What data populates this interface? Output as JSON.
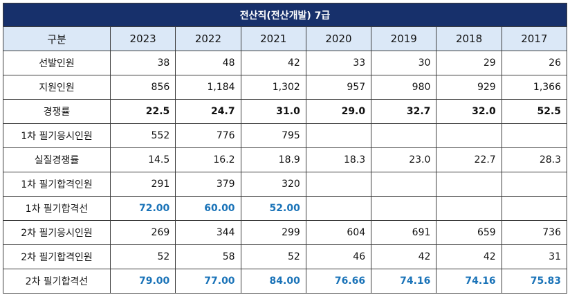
{
  "title": "전산직(전산개발) 7급",
  "header": [
    "구분",
    "2023",
    "2022",
    "2021",
    "2020",
    "2019",
    "2018",
    "2017"
  ],
  "rows": [
    {
      "label": "선발인원",
      "style": "normal",
      "values": [
        "38",
        "48",
        "42",
        "33",
        "30",
        "29",
        "26"
      ]
    },
    {
      "label": "지원인원",
      "style": "normal",
      "values": [
        "856",
        "1,184",
        "1,302",
        "957",
        "980",
        "929",
        "1,366"
      ]
    },
    {
      "label": "경쟁률",
      "style": "bold",
      "values": [
        "22.5",
        "24.7",
        "31.0",
        "29.0",
        "32.7",
        "32.0",
        "52.5"
      ]
    },
    {
      "label": "1차 필기응시인원",
      "style": "normal",
      "values": [
        "552",
        "776",
        "795",
        "",
        "",
        "",
        ""
      ]
    },
    {
      "label": "실질경쟁률",
      "style": "normal",
      "values": [
        "14.5",
        "16.2",
        "18.9",
        "18.3",
        "23.0",
        "22.7",
        "28.3"
      ]
    },
    {
      "label": "1차 필기합격인원",
      "style": "normal",
      "values": [
        "291",
        "379",
        "320",
        "",
        "",
        "",
        ""
      ]
    },
    {
      "label": "1차 필기합격선",
      "style": "blue",
      "values": [
        "72.00",
        "60.00",
        "52.00",
        "",
        "",
        "",
        ""
      ]
    },
    {
      "label": "2차 필기응시인원",
      "style": "normal",
      "values": [
        "269",
        "344",
        "299",
        "604",
        "691",
        "659",
        "736"
      ]
    },
    {
      "label": "2차 필기합격인원",
      "style": "normal",
      "values": [
        "52",
        "58",
        "52",
        "46",
        "42",
        "42",
        "31"
      ]
    },
    {
      "label": "2차 필기합격선",
      "style": "blue",
      "values": [
        "79.00",
        "77.00",
        "84.00",
        "76.66",
        "74.16",
        "74.16",
        "75.83"
      ]
    }
  ]
}
